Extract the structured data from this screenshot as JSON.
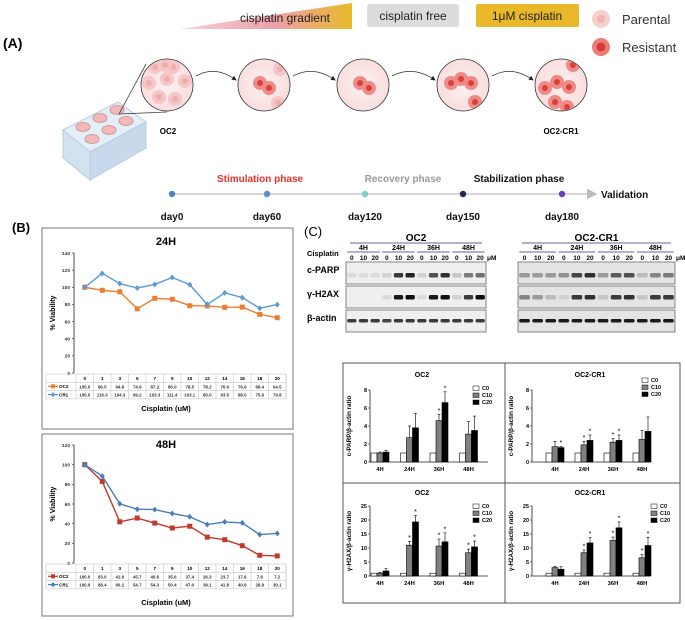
{
  "panel_a": {
    "label": "(A)",
    "banners": {
      "gradient": "cisplatin gradient",
      "free": "cisplatin free",
      "one_um": "1μM cisplatin"
    },
    "legend": {
      "parental": "Parental",
      "resistant": "Resistant"
    },
    "cell_lines": {
      "start": "OC2",
      "end": "OC2-CR1"
    },
    "phases": {
      "stimulation": "Stimulation phase",
      "recovery": "Recovery phase",
      "stabilization": "Stabilization phase"
    },
    "days": [
      "day0",
      "day60",
      "day120",
      "day150",
      "day180"
    ],
    "validation": "Validation",
    "colors": {
      "stimulation": "#e8302a",
      "recovery": "#999999",
      "stabilization": "#111111",
      "parental": "#f6c6c6",
      "resistant": "#e8504c",
      "banner_yellow": "#e9b92a",
      "banner_gray": "#dddddd"
    },
    "timeline_dot_colors": [
      "#4a86c5",
      "#5b8fc9",
      "#7fd0c8",
      "#1c2b50",
      "#6a3fc0"
    ]
  },
  "panel_b": {
    "label": "(B)"
  },
  "panel_c": {
    "label": "(C)",
    "blot": {
      "groups": [
        "OC2",
        "OC2-CR1"
      ],
      "timepoints": [
        "4H",
        "24H",
        "36H",
        "48H"
      ],
      "row_label": "Cisplatin",
      "doses": [
        "0",
        "10",
        "20"
      ],
      "unit": "μM",
      "proteins": [
        "c-PARP",
        "γ-H2AX",
        "β-actin"
      ]
    }
  },
  "chart_data": [
    {
      "type": "line",
      "title": "24H",
      "xlabel": "Cisplatin (uM)",
      "ylabel": "% Viability",
      "ylim": [
        0,
        140
      ],
      "yticks": [
        0,
        20,
        40,
        60,
        80,
        100,
        120,
        140
      ],
      "categories": [
        "0",
        "1",
        "3",
        "5",
        "7",
        "9",
        "10",
        "12",
        "14",
        "16",
        "18",
        "20"
      ],
      "series": [
        {
          "name": "OC2",
          "color": "#ed7d31",
          "marker": "square",
          "values": [
            100.0,
            96.5,
            94.8,
            74.9,
            87.2,
            86.0,
            78.5,
            78.2,
            76.6,
            76.9,
            68.4,
            64.5
          ]
        },
        {
          "name": "CR1",
          "color": "#5b9bd5",
          "marker": "diamond",
          "values": [
            100.0,
            116.3,
            104.3,
            99.2,
            103.3,
            111.4,
            103.1,
            80.0,
            93.5,
            88.0,
            75.6,
            79.8
          ]
        }
      ],
      "table": true,
      "grid": false
    },
    {
      "type": "line",
      "title": "48H",
      "xlabel": "Cisplatin (uM)",
      "ylabel": "% Viability",
      "ylim": [
        0,
        120
      ],
      "yticks": [
        0,
        20,
        40,
        60,
        80,
        100,
        120
      ],
      "categories": [
        "0",
        "1",
        "3",
        "5",
        "7",
        "9",
        "10",
        "12",
        "14",
        "16",
        "18",
        "20"
      ],
      "series": [
        {
          "name": "OC2",
          "color": "#c0392b",
          "marker": "square",
          "values": [
            100.0,
            83.0,
            41.9,
            45.7,
            40.6,
            35.6,
            37.4,
            26.3,
            23.7,
            17.6,
            7.8,
            7.2
          ]
        },
        {
          "name": "CR1",
          "color": "#4a7ebb",
          "marker": "diamond",
          "values": [
            100.0,
            88.4,
            60.2,
            54.7,
            54.3,
            50.4,
            47.0,
            39.1,
            41.8,
            40.8,
            28.9,
            30.1
          ]
        }
      ],
      "table": true,
      "grid": false
    },
    {
      "type": "bar",
      "title": "OC2",
      "ylabel": "c-PARP/β-actin ratio",
      "ylim": [
        0,
        8
      ],
      "yticks": [
        0,
        2,
        4,
        6,
        8
      ],
      "categories": [
        "4H",
        "24H",
        "36H",
        "48H"
      ],
      "legend": "top-right",
      "series": [
        {
          "name": "C0",
          "color": "#ffffff",
          "values": [
            1,
            1,
            1,
            1
          ],
          "errors": [
            0,
            0,
            0,
            0
          ],
          "sig": [
            false,
            false,
            false,
            false
          ]
        },
        {
          "name": "C10",
          "color": "#808080",
          "values": [
            1.0,
            2.7,
            4.6,
            3.1
          ],
          "errors": [
            0.1,
            1.3,
            0.7,
            1.4
          ],
          "sig": [
            false,
            false,
            true,
            false
          ]
        },
        {
          "name": "C20",
          "color": "#000000",
          "values": [
            1.1,
            3.8,
            6.6,
            3.5
          ],
          "errors": [
            0.2,
            1.6,
            1.2,
            1.6
          ],
          "sig": [
            false,
            false,
            true,
            false
          ]
        }
      ]
    },
    {
      "type": "bar",
      "title": "OC2-CR1",
      "ylabel": "c-PARP/β-actin ratio",
      "ylim": [
        0,
        8
      ],
      "yticks": [
        0,
        2,
        4,
        6,
        8
      ],
      "categories": [
        "4H",
        "24H",
        "36H",
        "48H"
      ],
      "legend": "top-right",
      "series": [
        {
          "name": "C0",
          "color": "#ffffff",
          "values": [
            1,
            1,
            1,
            1
          ],
          "errors": [
            0,
            0,
            0,
            0
          ],
          "sig": [
            false,
            false,
            false,
            false
          ]
        },
        {
          "name": "C10",
          "color": "#808080",
          "values": [
            1.7,
            1.9,
            2.2,
            2.5
          ],
          "errors": [
            0.6,
            0.4,
            0.4,
            1.0
          ],
          "sig": [
            false,
            true,
            true,
            false
          ]
        },
        {
          "name": "C20",
          "color": "#000000",
          "values": [
            1.6,
            2.4,
            2.4,
            3.4
          ],
          "errors": [
            0.1,
            0.6,
            0.6,
            1.6
          ],
          "sig": [
            true,
            true,
            true,
            false
          ]
        }
      ]
    },
    {
      "type": "bar",
      "title": "OC2",
      "ylabel": "γ-H2AX/β-actin ratio",
      "ylim": [
        0,
        25
      ],
      "yticks": [
        0,
        5,
        10,
        15,
        20,
        25
      ],
      "categories": [
        "4H",
        "24H",
        "36H",
        "48H"
      ],
      "legend": "top-right",
      "series": [
        {
          "name": "C0",
          "color": "#ffffff",
          "values": [
            1,
            1,
            1,
            1
          ],
          "errors": [
            0,
            0,
            0,
            0
          ],
          "sig": [
            false,
            false,
            false,
            false
          ]
        },
        {
          "name": "C10",
          "color": "#808080",
          "values": [
            1.0,
            11.0,
            10.7,
            8.3
          ],
          "errors": [
            0.3,
            1.4,
            2.5,
            1.3
          ],
          "sig": [
            false,
            true,
            true,
            true
          ]
        },
        {
          "name": "C20",
          "color": "#000000",
          "values": [
            1.8,
            19.3,
            12.2,
            10.4
          ],
          "errors": [
            0.8,
            2.3,
            3.2,
            2.1
          ],
          "sig": [
            false,
            true,
            true,
            true
          ]
        }
      ]
    },
    {
      "type": "bar",
      "title": "OC2-CR1",
      "ylabel": "γ-H2AX/β-actin ratio",
      "ylim": [
        0,
        25
      ],
      "yticks": [
        0,
        5,
        10,
        15,
        20,
        25
      ],
      "categories": [
        "4H",
        "24H",
        "36H",
        "48H"
      ],
      "legend": "top-right",
      "series": [
        {
          "name": "C0",
          "color": "#ffffff",
          "values": [
            1,
            1,
            1,
            1
          ],
          "errors": [
            0,
            0,
            0,
            0
          ],
          "sig": [
            false,
            false,
            false,
            false
          ]
        },
        {
          "name": "C10",
          "color": "#808080",
          "values": [
            3.0,
            8.3,
            12.7,
            6.5
          ],
          "errors": [
            0.4,
            1.0,
            1.2,
            1.1
          ],
          "sig": [
            false,
            true,
            true,
            true
          ]
        },
        {
          "name": "C20",
          "color": "#000000",
          "values": [
            2.4,
            11.8,
            17.2,
            10.9
          ],
          "errors": [
            0.9,
            1.9,
            2.1,
            2.9
          ],
          "sig": [
            false,
            true,
            true,
            true
          ]
        }
      ]
    }
  ]
}
